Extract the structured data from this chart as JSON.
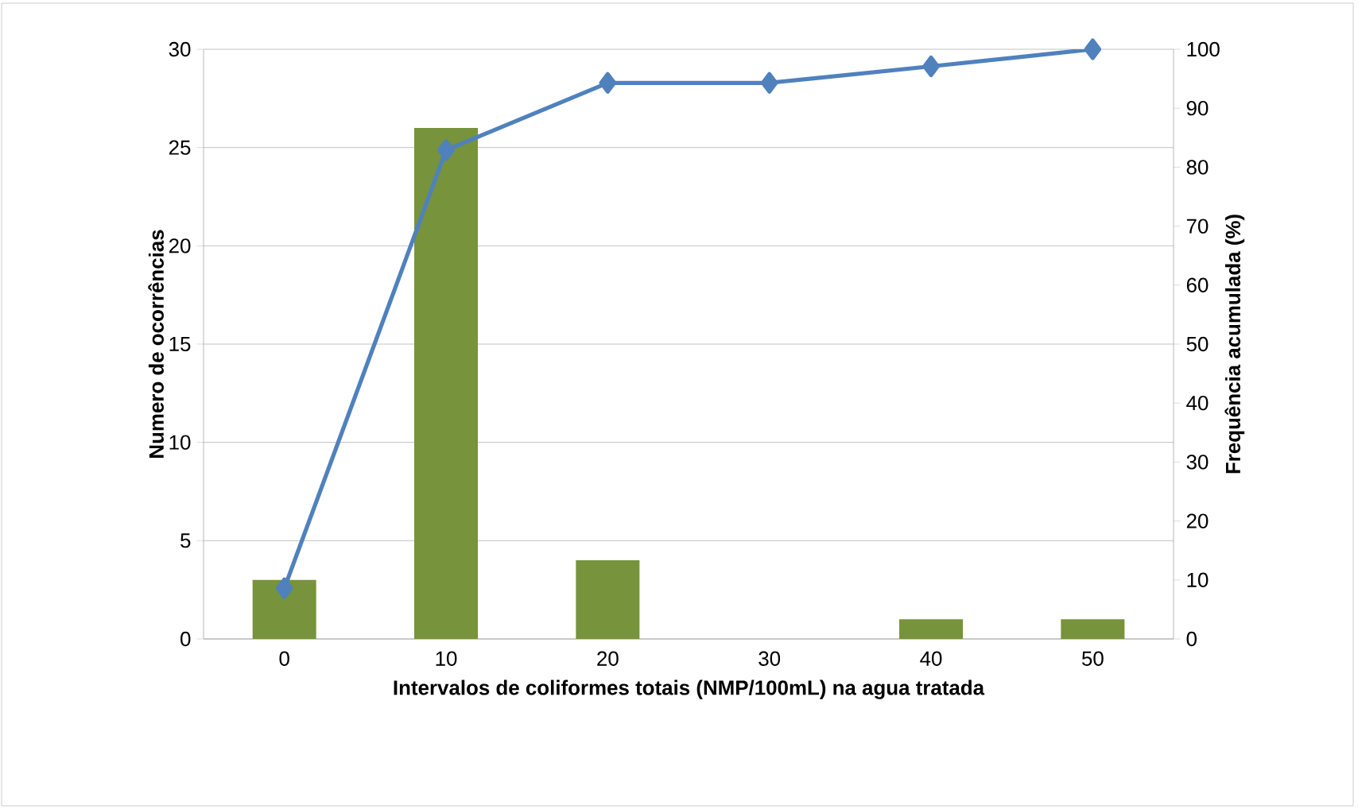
{
  "chart_data": {
    "type": "bar",
    "xlabel": "Intervalos de coliformes totais (NMP/100mL) na agua tratada",
    "ylabel": "Numero de ocorrências",
    "y2label": "Frequência acumulada (%)",
    "categories": [
      "0",
      "10",
      "20",
      "30",
      "40",
      "50"
    ],
    "series": [
      {
        "color": "#77933c",
        "values": [
          3,
          26,
          4,
          0,
          1,
          1
        ]
      },
      {
        "type": "line",
        "axis": "y2",
        "color": "#4f81bd",
        "marker": "diamond",
        "line_style": "solid",
        "values": [
          8.6,
          82.9,
          94.3,
          94.3,
          97.1,
          100
        ]
      }
    ],
    "ylim": [
      0,
      30
    ],
    "yticks": [
      0,
      5,
      10,
      15,
      20,
      25,
      30
    ],
    "y2lim": [
      0,
      100
    ],
    "y2ticks": [
      0,
      10,
      20,
      30,
      40,
      50,
      60,
      70,
      80,
      90,
      100
    ],
    "grid": "y"
  }
}
